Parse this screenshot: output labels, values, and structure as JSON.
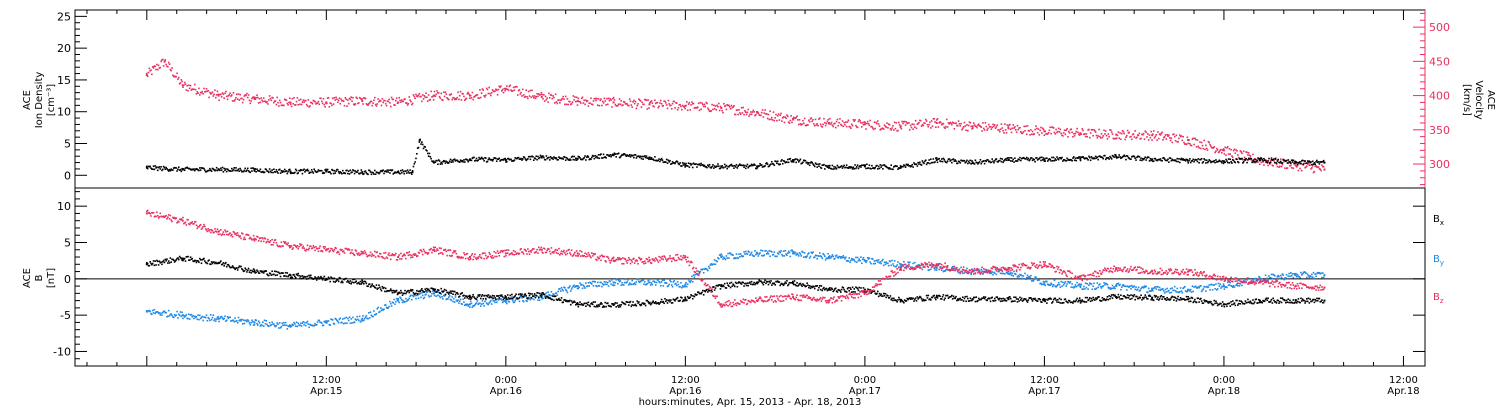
{
  "colors": {
    "black": "#000000",
    "pink": "#e8305f",
    "blue": "#1e88e5"
  },
  "chart_data": [
    {
      "type": "scatter",
      "panel": "top",
      "title": "",
      "ylabel_left": [
        "ACE",
        "Ion Density",
        "[cm⁻³]"
      ],
      "ylabel_right": [
        "ACE",
        "Velocity",
        "[km/s]"
      ],
      "ylim_left": [
        -2,
        26
      ],
      "ylim_right": [
        265,
        525
      ],
      "yticks_left": [
        0,
        5,
        10,
        15,
        20,
        25
      ],
      "yticks_right": [
        300,
        350,
        400,
        450,
        500
      ],
      "series": [
        {
          "color": "#000000",
          "axis": "left",
          "x": [
            0,
            0.1,
            0.2,
            0.3,
            0.4,
            0.5,
            0.6,
            0.7,
            0.74,
            0.76,
            0.8,
            0.9,
            1.0,
            1.1,
            1.2,
            1.3,
            1.4,
            1.5,
            1.6,
            1.7,
            1.8,
            1.9,
            2.0,
            2.1,
            2.2,
            2.3,
            2.4,
            2.5,
            2.6,
            2.7,
            2.8,
            2.9,
            3.0,
            3.1,
            3.2,
            3.28
          ],
          "y": [
            1.2,
            0.9,
            0.9,
            0.8,
            0.6,
            0.6,
            0.5,
            0.5,
            0.5,
            5.5,
            2.0,
            2.5,
            2.4,
            2.8,
            2.6,
            3.2,
            2.8,
            1.6,
            1.4,
            1.4,
            2.4,
            1.2,
            1.4,
            1.2,
            2.4,
            2.0,
            2.4,
            2.5,
            2.6,
            2.9,
            2.5,
            2.3,
            2.2,
            2.4,
            2.0,
            2.0
          ]
        },
        {
          "color": "#e8305f",
          "axis": "right",
          "x": [
            0,
            0.05,
            0.1,
            0.2,
            0.3,
            0.4,
            0.5,
            0.6,
            0.7,
            0.8,
            0.9,
            1.0,
            1.1,
            1.2,
            1.3,
            1.4,
            1.5,
            1.6,
            1.7,
            1.8,
            1.9,
            2.0,
            2.1,
            2.2,
            2.3,
            2.4,
            2.5,
            2.6,
            2.7,
            2.8,
            2.9,
            3.0,
            3.1,
            3.2,
            3.28
          ],
          "y": [
            430,
            450,
            415,
            400,
            395,
            390,
            390,
            392,
            390,
            400,
            400,
            410,
            398,
            392,
            390,
            387,
            385,
            382,
            375,
            365,
            360,
            358,
            355,
            360,
            355,
            352,
            348,
            345,
            343,
            342,
            335,
            320,
            305,
            298,
            292
          ]
        }
      ]
    },
    {
      "type": "scatter",
      "panel": "bottom",
      "title": "",
      "ylabel_left": [
        "ACE",
        "B",
        "[nT]"
      ],
      "ylim": [
        -12,
        12.5
      ],
      "yticks": [
        -10,
        -5,
        0,
        5,
        10
      ],
      "xlabel": "hours:minutes, Apr. 15, 2013 - Apr. 18, 2013",
      "xlim": [
        -0.2,
        3.56
      ],
      "x_units": "days since Apr. 15 00:00",
      "xtick_labels": [
        {
          "x": 0.5,
          "time": "12:00",
          "date": "Apr.15"
        },
        {
          "x": 1.0,
          "time": "0:00",
          "date": "Apr.16"
        },
        {
          "x": 1.5,
          "time": "12:00",
          "date": "Apr.16"
        },
        {
          "x": 2.0,
          "time": "0:00",
          "date": "Apr.17"
        },
        {
          "x": 2.5,
          "time": "12:00",
          "date": "Apr.17"
        },
        {
          "x": 3.0,
          "time": "0:00",
          "date": "Apr.18"
        },
        {
          "x": 3.5,
          "time": "12:00",
          "date": "Apr.18"
        }
      ],
      "series": [
        {
          "color": "#000000",
          "legend_sub": "x",
          "x": [
            0,
            0.1,
            0.2,
            0.3,
            0.4,
            0.5,
            0.6,
            0.7,
            0.8,
            0.9,
            1.0,
            1.1,
            1.2,
            1.3,
            1.4,
            1.5,
            1.6,
            1.7,
            1.8,
            1.9,
            2.0,
            2.1,
            2.2,
            2.3,
            2.4,
            2.5,
            2.6,
            2.7,
            2.8,
            2.9,
            3.0,
            3.1,
            3.2,
            3.28
          ],
          "y": [
            2.0,
            2.8,
            2.2,
            1.0,
            0.5,
            0.0,
            -0.5,
            -2.0,
            -1.5,
            -2.5,
            -2.5,
            -2.2,
            -3.5,
            -3.6,
            -3.3,
            -2.8,
            -1.0,
            -0.5,
            -0.6,
            -1.5,
            -1.5,
            -3.0,
            -2.5,
            -2.8,
            -2.8,
            -3.0,
            -3.0,
            -2.5,
            -2.6,
            -2.8,
            -3.5,
            -3.0,
            -3.0,
            -3.0
          ]
        },
        {
          "color": "#1e88e5",
          "legend_sub": "y",
          "x": [
            0,
            0.1,
            0.2,
            0.3,
            0.4,
            0.5,
            0.6,
            0.7,
            0.8,
            0.9,
            1.0,
            1.1,
            1.2,
            1.3,
            1.4,
            1.5,
            1.6,
            1.7,
            1.8,
            1.9,
            2.0,
            2.1,
            2.2,
            2.3,
            2.4,
            2.5,
            2.6,
            2.7,
            2.8,
            2.9,
            3.0,
            3.1,
            3.2,
            3.28
          ],
          "y": [
            -4.5,
            -5.0,
            -5.5,
            -6.0,
            -6.5,
            -6.0,
            -5.5,
            -3.0,
            -2.0,
            -3.5,
            -3.0,
            -2.5,
            -1.0,
            -0.5,
            -0.5,
            -0.8,
            3.0,
            3.5,
            3.5,
            3.0,
            2.5,
            2.0,
            1.5,
            1.0,
            1.0,
            -0.5,
            -1.0,
            -1.0,
            -1.5,
            -1.5,
            -1.0,
            0.0,
            0.5,
            0.5
          ]
        },
        {
          "color": "#e8305f",
          "legend_sub": "z",
          "x": [
            0,
            0.1,
            0.2,
            0.3,
            0.4,
            0.5,
            0.6,
            0.7,
            0.8,
            0.9,
            1.0,
            1.1,
            1.2,
            1.3,
            1.4,
            1.5,
            1.6,
            1.7,
            1.8,
            1.9,
            2.0,
            2.1,
            2.2,
            2.3,
            2.4,
            2.5,
            2.6,
            2.7,
            2.8,
            2.9,
            3.0,
            3.1,
            3.2,
            3.28
          ],
          "y": [
            9.0,
            8.0,
            6.5,
            5.5,
            4.5,
            4.0,
            3.5,
            3.0,
            4.0,
            3.0,
            3.5,
            4.0,
            3.5,
            2.5,
            2.5,
            3.0,
            -3.5,
            -3.0,
            -2.5,
            -3.0,
            -2.0,
            1.5,
            2.0,
            1.0,
            1.5,
            2.0,
            0.0,
            1.5,
            1.0,
            1.0,
            0.0,
            -0.5,
            -1.0,
            -1.2
          ]
        }
      ]
    }
  ]
}
